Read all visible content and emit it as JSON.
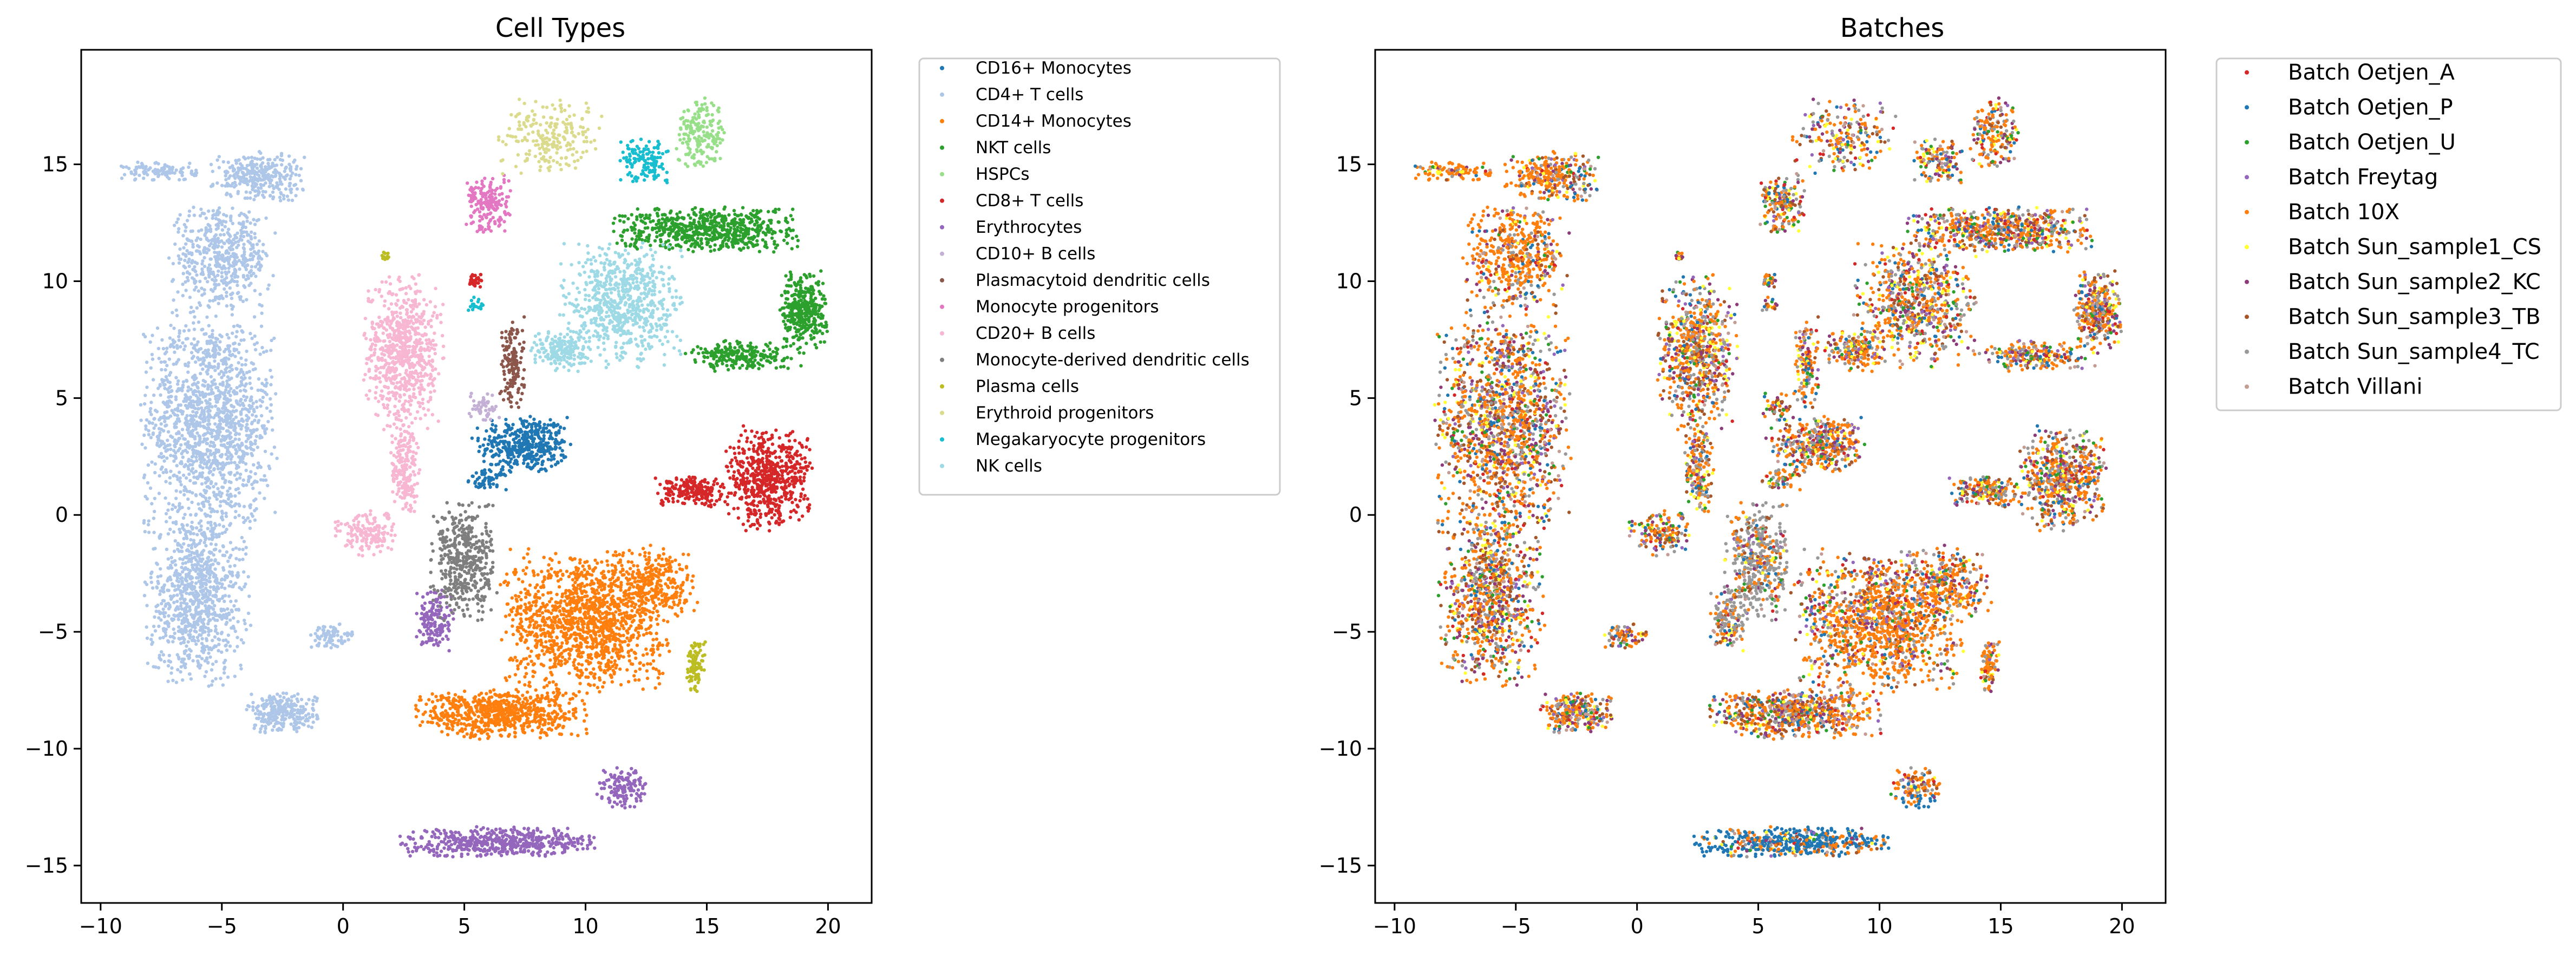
{
  "chart_data": [
    {
      "type": "scatter",
      "title": "Cell Types",
      "xlabel": "",
      "ylabel": "",
      "xlim": [
        -10.8,
        21.8
      ],
      "ylim": [
        -16.6,
        19.9
      ],
      "xticks": [
        -10,
        -5,
        0,
        5,
        10,
        15,
        20
      ],
      "yticks": [
        -15,
        -10,
        -5,
        0,
        5,
        10,
        15
      ],
      "xtick_labels": [
        "−10",
        "−5",
        "0",
        "5",
        "10",
        "15",
        "20"
      ],
      "ytick_labels": [
        "−15",
        "−10",
        "−5",
        "0",
        "5",
        "10",
        "15"
      ],
      "grid": false,
      "legend_position": "outside-right-top",
      "series": [
        {
          "name": "CD16+ Monocytes",
          "color": "#1f77b4",
          "clusters": [
            {
              "cx": 7.5,
              "cy": 3.0,
              "rx": 1.8,
              "ry": 1.2,
              "n": 420,
              "shape": "blob"
            },
            {
              "cx": 6.0,
              "cy": 1.5,
              "rx": 0.8,
              "ry": 0.4,
              "n": 60,
              "shape": "blob"
            }
          ]
        },
        {
          "name": "CD4+ T cells",
          "color": "#aec7e8",
          "clusters": [
            {
              "cx": -5.5,
              "cy": 4.0,
              "rx": 2.6,
              "ry": 4.5,
              "n": 1400,
              "shape": "blob"
            },
            {
              "cx": -6.0,
              "cy": -3.5,
              "rx": 2.0,
              "ry": 3.5,
              "n": 900,
              "shape": "blob"
            },
            {
              "cx": -5.0,
              "cy": 11.0,
              "rx": 2.0,
              "ry": 2.0,
              "n": 500,
              "shape": "blob"
            },
            {
              "cx": -3.5,
              "cy": 14.5,
              "rx": 1.8,
              "ry": 1.0,
              "n": 300,
              "shape": "blob"
            },
            {
              "cx": -7.5,
              "cy": 14.7,
              "rx": 1.5,
              "ry": 0.4,
              "n": 100,
              "shape": "blob"
            },
            {
              "cx": -2.5,
              "cy": -8.5,
              "rx": 1.4,
              "ry": 0.8,
              "n": 260,
              "shape": "blob"
            },
            {
              "cx": -0.5,
              "cy": -5.2,
              "rx": 0.9,
              "ry": 0.5,
              "n": 80,
              "shape": "blob"
            }
          ]
        },
        {
          "name": "CD14+ Monocytes",
          "color": "#ff7f0e",
          "clusters": [
            {
              "cx": 10.0,
              "cy": -4.5,
              "rx": 3.2,
              "ry": 2.8,
              "n": 1300,
              "shape": "blob"
            },
            {
              "cx": 6.5,
              "cy": -8.5,
              "rx": 3.3,
              "ry": 1.0,
              "n": 700,
              "shape": "blob"
            },
            {
              "cx": 13.0,
              "cy": -3.0,
              "rx": 1.5,
              "ry": 1.5,
              "n": 260,
              "shape": "blob"
            }
          ]
        },
        {
          "name": "NKT cells",
          "color": "#2ca02c",
          "clusters": [
            {
              "cx": 15.0,
              "cy": 12.2,
              "rx": 3.5,
              "ry": 0.9,
              "n": 650,
              "shape": "blob"
            },
            {
              "cx": 19.0,
              "cy": 8.8,
              "rx": 0.9,
              "ry": 1.5,
              "n": 350,
              "shape": "blob"
            },
            {
              "cx": 16.5,
              "cy": 6.8,
              "rx": 2.3,
              "ry": 0.6,
              "n": 220,
              "shape": "blob"
            }
          ]
        },
        {
          "name": "HSPCs",
          "color": "#98df8a",
          "clusters": [
            {
              "cx": 14.8,
              "cy": 16.3,
              "rx": 1.0,
              "ry": 1.4,
              "n": 180,
              "shape": "blob"
            }
          ]
        },
        {
          "name": "CD8+ T cells",
          "color": "#d62728",
          "clusters": [
            {
              "cx": 17.5,
              "cy": 1.5,
              "rx": 1.7,
              "ry": 2.0,
              "n": 600,
              "shape": "blob"
            },
            {
              "cx": 14.5,
              "cy": 1.0,
              "rx": 1.5,
              "ry": 0.6,
              "n": 200,
              "shape": "blob"
            },
            {
              "cx": 5.5,
              "cy": 10.0,
              "rx": 0.3,
              "ry": 0.3,
              "n": 30,
              "shape": "blob"
            }
          ]
        },
        {
          "name": "Erythrocytes",
          "color": "#9467bd",
          "clusters": [
            {
              "cx": 6.5,
              "cy": -14.0,
              "rx": 3.8,
              "ry": 0.6,
              "n": 520,
              "shape": "blob"
            },
            {
              "cx": 11.5,
              "cy": -11.7,
              "rx": 1.0,
              "ry": 0.8,
              "n": 140,
              "shape": "blob"
            },
            {
              "cx": 3.8,
              "cy": -4.5,
              "rx": 0.7,
              "ry": 1.4,
              "n": 160,
              "shape": "blob"
            }
          ]
        },
        {
          "name": "CD10+ B cells",
          "color": "#c5b0d5",
          "clusters": [
            {
              "cx": 5.8,
              "cy": 4.6,
              "rx": 0.6,
              "ry": 0.6,
              "n": 50,
              "shape": "blob"
            }
          ]
        },
        {
          "name": "Plasmacytoid dendritic cells",
          "color": "#8c564b",
          "clusters": [
            {
              "cx": 7.0,
              "cy": 6.5,
              "rx": 0.5,
              "ry": 1.8,
              "n": 140,
              "shape": "blob"
            }
          ]
        },
        {
          "name": "Monocyte progenitors",
          "color": "#e377c2",
          "clusters": [
            {
              "cx": 6.0,
              "cy": 13.3,
              "rx": 0.9,
              "ry": 1.2,
              "n": 180,
              "shape": "blob"
            }
          ]
        },
        {
          "name": "CD20+ B cells",
          "color": "#f7b6d2",
          "clusters": [
            {
              "cx": 2.5,
              "cy": 7.0,
              "rx": 1.5,
              "ry": 3.0,
              "n": 700,
              "shape": "blob"
            },
            {
              "cx": 1.0,
              "cy": -0.8,
              "rx": 1.2,
              "ry": 0.9,
              "n": 160,
              "shape": "blob"
            },
            {
              "cx": 2.5,
              "cy": 2.0,
              "rx": 0.6,
              "ry": 1.8,
              "n": 200,
              "shape": "blob"
            }
          ]
        },
        {
          "name": "Monocyte-derived dendritic cells",
          "color": "#7f7f7f",
          "clusters": [
            {
              "cx": 5.0,
              "cy": -2.0,
              "rx": 1.3,
              "ry": 2.3,
              "n": 430,
              "shape": "blob"
            }
          ]
        },
        {
          "name": "Plasma cells",
          "color": "#bcbd22",
          "clusters": [
            {
              "cx": 14.5,
              "cy": -6.5,
              "rx": 0.4,
              "ry": 1.2,
              "n": 90,
              "shape": "blob"
            },
            {
              "cx": 1.8,
              "cy": 11.1,
              "rx": 0.2,
              "ry": 0.2,
              "n": 15,
              "shape": "blob"
            }
          ]
        },
        {
          "name": "Erythroid progenitors",
          "color": "#dbdb8d",
          "clusters": [
            {
              "cx": 8.5,
              "cy": 16.2,
              "rx": 2.0,
              "ry": 1.5,
              "n": 220,
              "shape": "blob"
            }
          ]
        },
        {
          "name": "Megakaryocyte progenitors",
          "color": "#17becf",
          "clusters": [
            {
              "cx": 12.5,
              "cy": 15.2,
              "rx": 1.0,
              "ry": 0.9,
              "n": 130,
              "shape": "blob"
            },
            {
              "cx": 5.5,
              "cy": 9.0,
              "rx": 0.3,
              "ry": 0.4,
              "n": 20,
              "shape": "blob"
            }
          ]
        },
        {
          "name": "NK cells",
          "color": "#9edae5",
          "clusters": [
            {
              "cx": 11.5,
              "cy": 9.0,
              "rx": 2.3,
              "ry": 2.5,
              "n": 700,
              "shape": "blob"
            },
            {
              "cx": 9.0,
              "cy": 7.0,
              "rx": 1.2,
              "ry": 0.8,
              "n": 180,
              "shape": "blob"
            }
          ]
        }
      ]
    },
    {
      "type": "scatter",
      "title": "Batches",
      "xlabel": "",
      "ylabel": "",
      "xlim": [
        -10.8,
        21.8
      ],
      "ylim": [
        -16.6,
        19.9
      ],
      "xticks": [
        -10,
        -5,
        0,
        5,
        10,
        15,
        20
      ],
      "yticks": [
        -15,
        -10,
        -5,
        0,
        5,
        10,
        15
      ],
      "xtick_labels": [
        "−10",
        "−5",
        "0",
        "5",
        "10",
        "15",
        "20"
      ],
      "ytick_labels": [
        "−15",
        "−10",
        "−5",
        "0",
        "5",
        "10",
        "15"
      ],
      "grid": false,
      "legend_position": "outside-right-top",
      "series": [
        {
          "name": "Batch Oetjen_A",
          "color": "#d62728"
        },
        {
          "name": "Batch Oetjen_P",
          "color": "#1f77b4"
        },
        {
          "name": "Batch Oetjen_U",
          "color": "#2ca02c"
        },
        {
          "name": "Batch Freytag",
          "color": "#9467bd"
        },
        {
          "name": "Batch 10X",
          "color": "#ff7f0e"
        },
        {
          "name": "Batch Sun_sample1_CS",
          "color": "#ffff33"
        },
        {
          "name": "Batch Sun_sample2_KC",
          "color": "#8c3a7a"
        },
        {
          "name": "Batch Sun_sample3_TB",
          "color": "#a65628"
        },
        {
          "name": "Batch Sun_sample4_TC",
          "color": "#999999"
        },
        {
          "name": "Batch Villani",
          "color": "#c49c94"
        }
      ]
    }
  ]
}
